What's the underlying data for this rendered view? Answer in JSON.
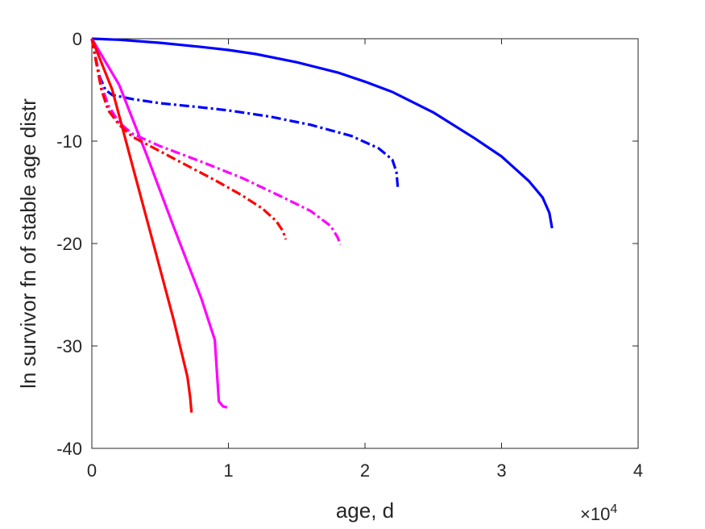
{
  "chart_data": {
    "type": "line",
    "title": "",
    "xlabel": "age, d",
    "ylabel": "ln survivor fn of stable age distr",
    "x_exponent_label": "×10",
    "x_exponent_power": "4",
    "xlim": [
      0,
      40000
    ],
    "ylim": [
      -40,
      0
    ],
    "xticks": [
      0,
      10000,
      20000,
      30000,
      40000
    ],
    "xtick_labels": [
      "0",
      "1",
      "2",
      "3",
      "4"
    ],
    "yticks": [
      -40,
      -30,
      -20,
      -10,
      0
    ],
    "ytick_labels": [
      "-40",
      "-30",
      "-20",
      "-10",
      "0"
    ],
    "grid": false,
    "legend": "none",
    "series": [
      {
        "color": "#0000ff",
        "dash": "solid",
        "points": [
          [
            0,
            0
          ],
          [
            2000,
            -0.1
          ],
          [
            5000,
            -0.4
          ],
          [
            8000,
            -0.8
          ],
          [
            10000,
            -1.1
          ],
          [
            12000,
            -1.5
          ],
          [
            15000,
            -2.3
          ],
          [
            18000,
            -3.3
          ],
          [
            20000,
            -4.2
          ],
          [
            22000,
            -5.2
          ],
          [
            25000,
            -7.2
          ],
          [
            28000,
            -9.7
          ],
          [
            30000,
            -11.5
          ],
          [
            32000,
            -13.9
          ],
          [
            33000,
            -15.5
          ],
          [
            33500,
            -17.0
          ],
          [
            33700,
            -18.5
          ]
        ]
      },
      {
        "color": "#0000ff",
        "dash": "dashdot",
        "points": [
          [
            0,
            0
          ],
          [
            300,
            -2.0
          ],
          [
            600,
            -3.8
          ],
          [
            1000,
            -5.0
          ],
          [
            1500,
            -5.5
          ],
          [
            3000,
            -5.9
          ],
          [
            5000,
            -6.3
          ],
          [
            8000,
            -6.7
          ],
          [
            10000,
            -7.0
          ],
          [
            13000,
            -7.6
          ],
          [
            16000,
            -8.4
          ],
          [
            19000,
            -9.5
          ],
          [
            21000,
            -10.7
          ],
          [
            22000,
            -11.8
          ],
          [
            22300,
            -13.0
          ],
          [
            22400,
            -14.5
          ]
        ]
      },
      {
        "color": "#ff00ff",
        "dash": "solid",
        "points": [
          [
            0,
            0
          ],
          [
            2000,
            -4.5
          ],
          [
            4000,
            -11.3
          ],
          [
            6000,
            -18.4
          ],
          [
            8000,
            -25.3
          ],
          [
            9000,
            -29.4
          ],
          [
            9300,
            -35.4
          ],
          [
            9600,
            -35.9
          ],
          [
            9900,
            -36.0
          ]
        ]
      },
      {
        "color": "#ff00ff",
        "dash": "dashdot",
        "points": [
          [
            0,
            0
          ],
          [
            300,
            -2.0
          ],
          [
            700,
            -4.5
          ],
          [
            1200,
            -6.5
          ],
          [
            2000,
            -8.2
          ],
          [
            3000,
            -9.3
          ],
          [
            5000,
            -10.5
          ],
          [
            8000,
            -12.0
          ],
          [
            11000,
            -13.6
          ],
          [
            14000,
            -15.5
          ],
          [
            16000,
            -16.8
          ],
          [
            17500,
            -18.3
          ],
          [
            18000,
            -19.4
          ],
          [
            18200,
            -20.1
          ]
        ]
      },
      {
        "color": "#ff0000",
        "dash": "solid",
        "points": [
          [
            0,
            0
          ],
          [
            1500,
            -5.0
          ],
          [
            3000,
            -12.5
          ],
          [
            4500,
            -20.0
          ],
          [
            6000,
            -27.5
          ],
          [
            7000,
            -33.0
          ],
          [
            7200,
            -35.0
          ],
          [
            7300,
            -36.5
          ]
        ]
      },
      {
        "color": "#ff0000",
        "dash": "dashdot",
        "points": [
          [
            0,
            0
          ],
          [
            300,
            -2.2
          ],
          [
            700,
            -5.0
          ],
          [
            1200,
            -7.0
          ],
          [
            2000,
            -8.4
          ],
          [
            3000,
            -9.6
          ],
          [
            5000,
            -11.0
          ],
          [
            7000,
            -12.4
          ],
          [
            9000,
            -13.8
          ],
          [
            11000,
            -15.3
          ],
          [
            12500,
            -16.6
          ],
          [
            13500,
            -17.8
          ],
          [
            14000,
            -18.8
          ],
          [
            14200,
            -19.6
          ]
        ]
      }
    ]
  }
}
